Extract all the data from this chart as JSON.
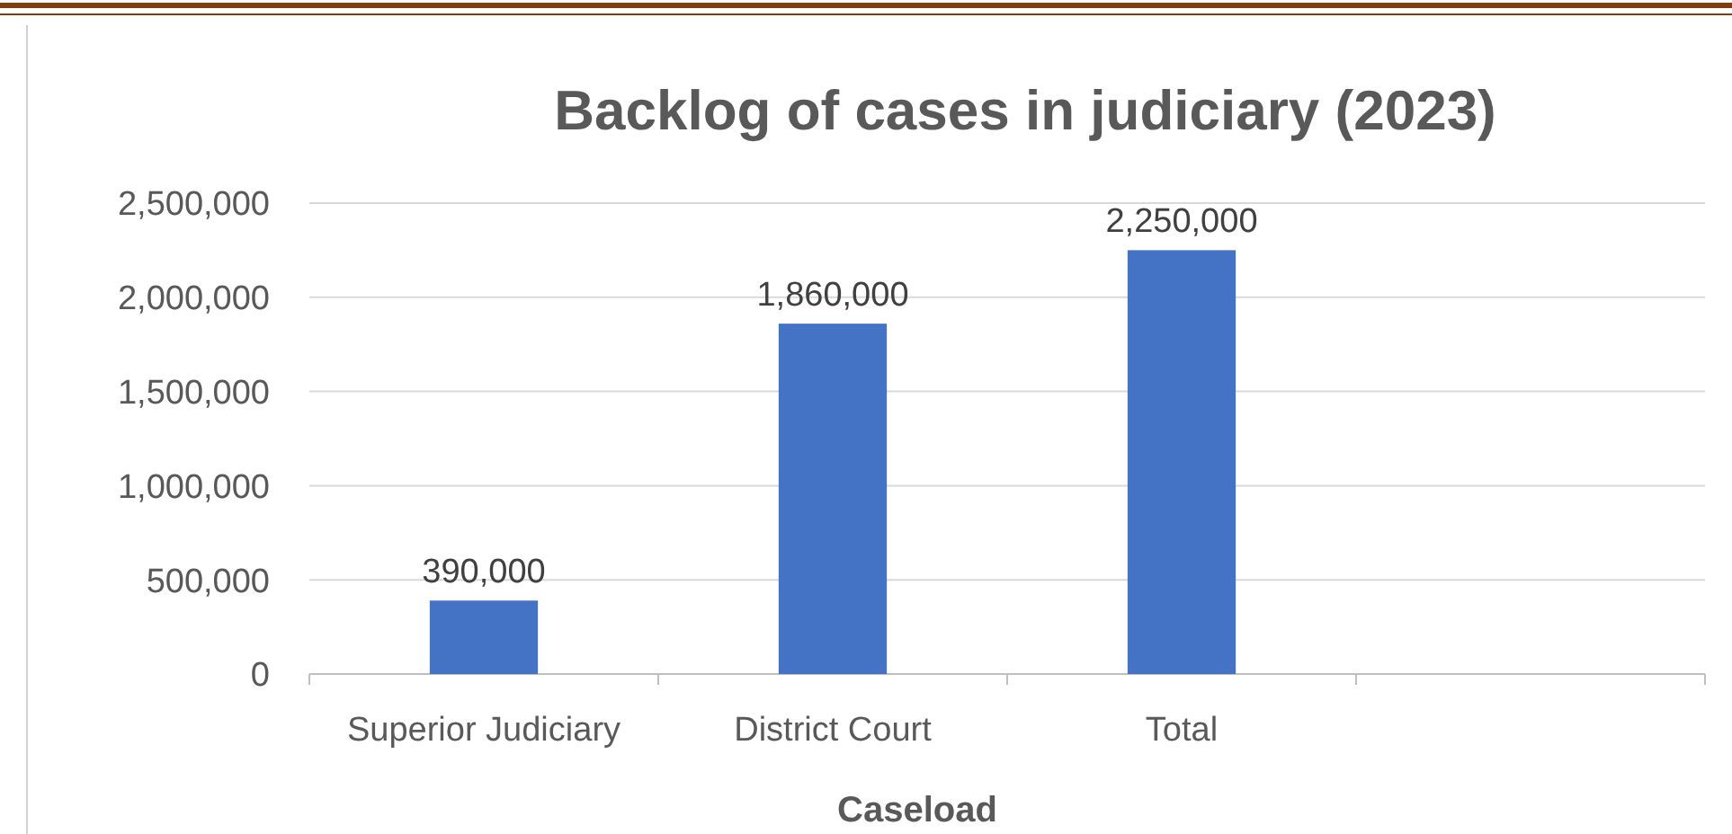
{
  "chart_data": {
    "type": "bar",
    "title": "Backlog of cases in judiciary (2023)",
    "xlabel": "Caseload",
    "categories": [
      "Superior Judiciary",
      "District Court",
      "Total",
      null
    ],
    "values": [
      390000,
      1860000,
      2250000,
      null
    ],
    "color": "#4472c4",
    "ylim": [
      0,
      2500000
    ],
    "yticks": [
      {
        "value": 0,
        "label": "0"
      },
      {
        "value": 500000,
        "label": "500,000"
      },
      {
        "value": 1000000,
        "label": "1,000,000"
      },
      {
        "value": 1500000,
        "label": "1,500,000"
      },
      {
        "value": 2000000,
        "label": "2,000,000"
      },
      {
        "value": 2500000,
        "label": "2,500,000"
      }
    ],
    "value_labels": [
      "390,000",
      "1,860,000",
      "2,250,000",
      null
    ],
    "grid": "y"
  }
}
